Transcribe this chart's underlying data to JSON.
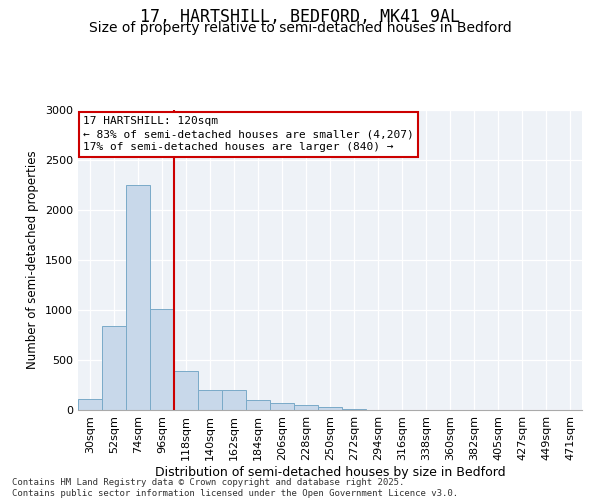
{
  "title1": "17, HARTSHILL, BEDFORD, MK41 9AL",
  "title2": "Size of property relative to semi-detached houses in Bedford",
  "xlabel": "Distribution of semi-detached houses by size in Bedford",
  "ylabel": "Number of semi-detached properties",
  "categories": [
    "30sqm",
    "52sqm",
    "74sqm",
    "96sqm",
    "118sqm",
    "140sqm",
    "162sqm",
    "184sqm",
    "206sqm",
    "228sqm",
    "250sqm",
    "272sqm",
    "294sqm",
    "316sqm",
    "338sqm",
    "360sqm",
    "382sqm",
    "405sqm",
    "427sqm",
    "449sqm",
    "471sqm"
  ],
  "values": [
    115,
    840,
    2250,
    1010,
    390,
    200,
    200,
    105,
    70,
    50,
    30,
    8,
    4,
    2,
    1,
    0,
    0,
    0,
    0,
    0,
    0
  ],
  "bar_color": "#c8d8ea",
  "bar_edge_color": "#7aaac8",
  "vline_x_index": 4,
  "vline_color": "#cc0000",
  "annotation_title": "17 HARTSHILL: 120sqm",
  "annotation_line1": "← 83% of semi-detached houses are smaller (4,207)",
  "annotation_line2": "17% of semi-detached houses are larger (840) →",
  "annotation_box_color": "#cc0000",
  "ylim": [
    0,
    3000
  ],
  "yticks": [
    0,
    500,
    1000,
    1500,
    2000,
    2500,
    3000
  ],
  "background_color": "#eef2f7",
  "footer": "Contains HM Land Registry data © Crown copyright and database right 2025.\nContains public sector information licensed under the Open Government Licence v3.0.",
  "title1_fontsize": 12,
  "title2_fontsize": 10,
  "xlabel_fontsize": 9,
  "ylabel_fontsize": 8.5,
  "tick_fontsize": 8,
  "footer_fontsize": 6.5,
  "annotation_fontsize": 8
}
